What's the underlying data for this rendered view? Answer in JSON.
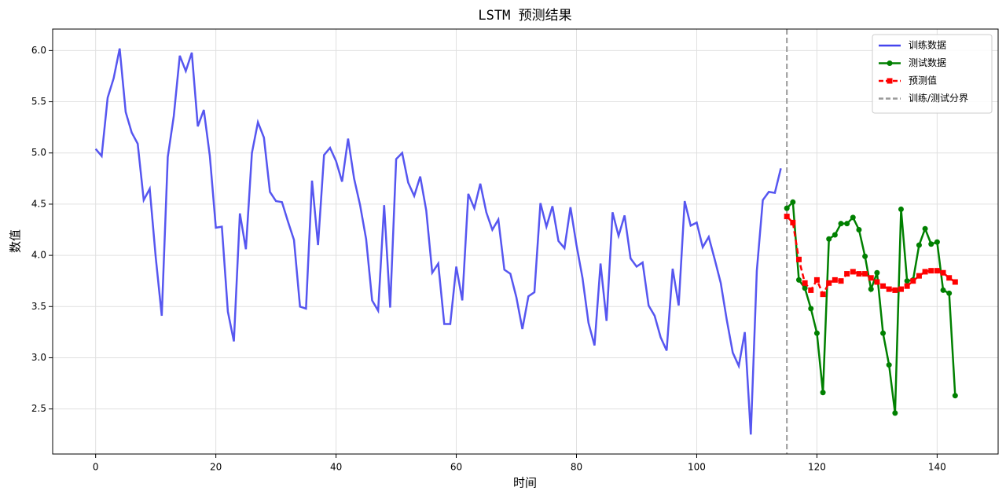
{
  "chart_data": {
    "type": "line",
    "title": "LSTM 预测结果",
    "x_label": "时间",
    "y_label": "数值",
    "xlim": [
      -7.15,
      150.15
    ],
    "ylim": [
      2.06,
      6.21
    ],
    "xticks": [
      0,
      20,
      40,
      60,
      80,
      100,
      120,
      140
    ],
    "yticks": [
      2.5,
      {
        "value": 3,
        "label": "3.0"
      },
      3.5,
      {
        "value": 4,
        "label": "4.0"
      },
      4.5,
      {
        "value": 5,
        "label": "5.0"
      },
      5.5,
      {
        "value": 6,
        "label": "6.0"
      }
    ],
    "grid": true,
    "legend": "upper right",
    "series": [
      {
        "name": "训练数据",
        "color": "#4444ee",
        "marker": "none",
        "dash": "solid",
        "x": [
          0,
          1,
          2,
          3,
          4,
          5,
          6,
          7,
          8,
          9,
          10,
          11,
          12,
          13,
          14,
          15,
          16,
          17,
          18,
          19,
          20,
          21,
          22,
          23,
          24,
          25,
          26,
          27,
          28,
          29,
          30,
          31,
          32,
          33,
          34,
          35,
          36,
          37,
          38,
          39,
          40,
          41,
          42,
          43,
          44,
          45,
          46,
          47,
          48,
          49,
          50,
          51,
          52,
          53,
          54,
          55,
          56,
          57,
          58,
          59,
          60,
          61,
          62,
          63,
          64,
          65,
          66,
          67,
          68,
          69,
          70,
          71,
          72,
          73,
          74,
          75,
          76,
          77,
          78,
          79,
          80,
          81,
          82,
          83,
          84,
          85,
          86,
          87,
          88,
          89,
          90,
          91,
          92,
          93,
          94,
          95,
          96,
          97,
          98,
          99,
          100,
          101,
          102,
          103,
          104,
          105,
          106,
          107,
          108,
          109,
          110,
          111,
          112,
          113,
          114
        ],
        "values": [
          5.04,
          4.97,
          5.54,
          5.73,
          6.02,
          5.4,
          5.2,
          5.09,
          4.54,
          4.65,
          3.98,
          3.41,
          4.96,
          5.36,
          5.95,
          5.8,
          5.98,
          5.26,
          5.42,
          4.97,
          4.27,
          4.28,
          3.45,
          3.16,
          4.41,
          4.06,
          5.0,
          5.3,
          5.15,
          4.62,
          4.53,
          4.52,
          4.33,
          4.15,
          3.5,
          3.48,
          4.73,
          4.1,
          4.98,
          5.05,
          4.92,
          4.72,
          5.14,
          4.75,
          4.49,
          4.16,
          3.56,
          3.46,
          4.49,
          3.49,
          4.94,
          5.0,
          4.71,
          4.58,
          4.77,
          4.44,
          3.83,
          3.92,
          3.33,
          3.33,
          3.89,
          3.56,
          4.6,
          4.46,
          4.7,
          4.42,
          4.25,
          4.35,
          3.86,
          3.82,
          3.59,
          3.28,
          3.6,
          3.64,
          4.51,
          4.28,
          4.48,
          4.14,
          4.07,
          4.47,
          4.1,
          3.78,
          3.34,
          3.12,
          3.92,
          3.36,
          4.42,
          4.19,
          4.39,
          3.97,
          3.89,
          3.93,
          3.51,
          3.41,
          3.2,
          3.07,
          3.87,
          3.51,
          4.53,
          4.29,
          4.32,
          4.08,
          4.18,
          3.96,
          3.73,
          3.37,
          3.05,
          2.92,
          3.25,
          2.25,
          3.85,
          4.54,
          4.62,
          4.61,
          4.85
        ]
      },
      {
        "name": "测试数据",
        "color": "#008000",
        "marker": "circle",
        "dash": "solid",
        "x": [
          115,
          116,
          117,
          118,
          119,
          120,
          121,
          122,
          123,
          124,
          125,
          126,
          127,
          128,
          129,
          130,
          131,
          132,
          133,
          134,
          135,
          136,
          137,
          138,
          139,
          140,
          141,
          142,
          143
        ],
        "values": [
          4.46,
          4.52,
          3.76,
          3.68,
          3.48,
          3.24,
          2.66,
          4.16,
          4.2,
          4.31,
          4.31,
          4.37,
          4.25,
          3.99,
          3.67,
          3.83,
          3.24,
          2.93,
          2.46,
          4.45,
          3.75,
          3.76,
          4.1,
          4.26,
          4.11,
          4.13,
          3.66,
          3.63,
          2.63
        ]
      },
      {
        "name": "预测值",
        "color": "#ff0000",
        "marker": "square",
        "dash": "dashed",
        "x": [
          115,
          116,
          117,
          118,
          119,
          120,
          121,
          122,
          123,
          124,
          125,
          126,
          127,
          128,
          129,
          130,
          131,
          132,
          133,
          134,
          135,
          136,
          137,
          138,
          139,
          140,
          141,
          142,
          143
        ],
        "values": [
          4.38,
          4.32,
          3.96,
          3.73,
          3.66,
          3.76,
          3.62,
          3.73,
          3.76,
          3.75,
          3.82,
          3.84,
          3.82,
          3.82,
          3.78,
          3.74,
          3.7,
          3.67,
          3.66,
          3.67,
          3.7,
          3.75,
          3.8,
          3.84,
          3.85,
          3.85,
          3.83,
          3.78,
          3.74
        ]
      }
    ],
    "vlines": [
      {
        "x": 115,
        "name": "训练/测试分界",
        "color": "#999999"
      }
    ]
  }
}
